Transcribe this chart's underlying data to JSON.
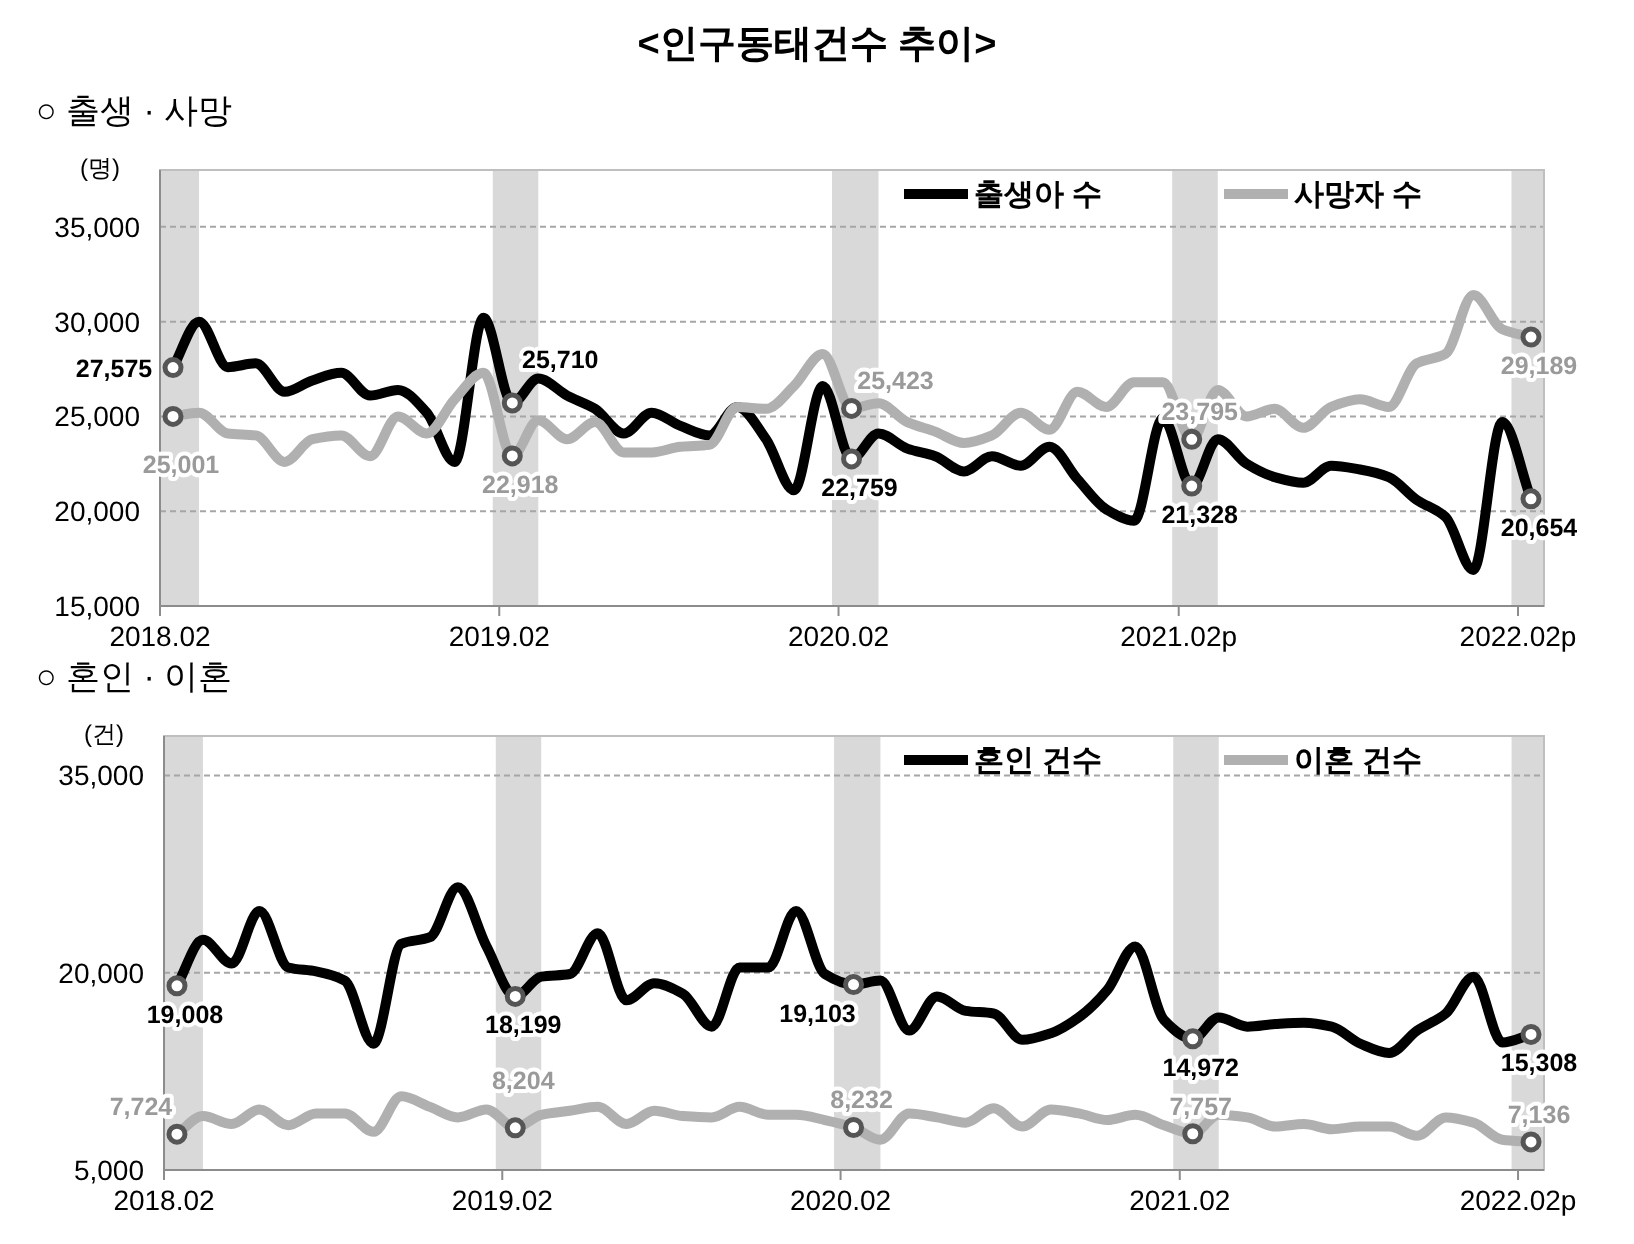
{
  "chart_data": [
    {
      "type": "line",
      "title": "<인구동태건수 추이>",
      "subtitle": "○ 출생 · 사망",
      "ylabel": "(명)",
      "x": [
        "2018-02-15",
        "2018-03-15",
        "2018-04-15",
        "2018-05-15",
        "2018-06-15",
        "2018-07-15",
        "2018-08-15",
        "2018-09-15",
        "2018-10-15",
        "2018-11-15",
        "2018-12-15",
        "2019-01-15",
        "2019-02-15",
        "2019-03-15",
        "2019-04-15",
        "2019-05-15",
        "2019-06-15",
        "2019-07-15",
        "2019-08-15",
        "2019-09-15",
        "2019-10-15",
        "2019-11-15",
        "2019-12-15",
        "2020-01-15",
        "2020-02-15",
        "2020-03-15",
        "2020-04-15",
        "2020-05-15",
        "2020-06-15",
        "2020-07-15",
        "2020-08-15",
        "2020-09-15",
        "2020-10-15",
        "2020-11-15",
        "2020-12-15",
        "2021-01-15",
        "2021-02-15",
        "2021-03-15",
        "2021-04-15",
        "2021-05-15",
        "2021-06-15",
        "2021-07-15",
        "2021-08-15",
        "2021-09-15",
        "2021-10-15",
        "2021-11-15",
        "2021-12-15",
        "2022-01-15",
        "2022-02-15"
      ],
      "series": [
        {
          "name": "출생아 수",
          "color": "#000000",
          "values": [
            27575,
            30000,
            27600,
            27800,
            26300,
            26900,
            27300,
            26100,
            26400,
            25200,
            22600,
            30200,
            25710,
            27000,
            26100,
            25400,
            24100,
            25200,
            24500,
            24000,
            25500,
            23800,
            21100,
            26600,
            22759,
            24100,
            23300,
            22900,
            22100,
            22900,
            22400,
            23400,
            21700,
            20100,
            19500,
            24900,
            21328,
            23800,
            22500,
            21800,
            21500,
            22400,
            22200,
            21800,
            20600,
            19700,
            16900,
            24700,
            20654
          ],
          "value_labels": [
            "27,575",
            null,
            null,
            null,
            null,
            null,
            null,
            null,
            null,
            null,
            null,
            null,
            "25,710",
            null,
            null,
            null,
            null,
            null,
            null,
            null,
            null,
            null,
            null,
            null,
            "22,759",
            null,
            null,
            null,
            null,
            null,
            null,
            null,
            null,
            null,
            null,
            null,
            "21,328",
            null,
            null,
            null,
            null,
            null,
            null,
            null,
            null,
            null,
            null,
            null,
            "20,654"
          ]
        },
        {
          "name": "사망자 수",
          "color": "#b0b0b0",
          "values": [
            25001,
            25200,
            24100,
            24000,
            22600,
            23800,
            24000,
            22900,
            25000,
            24100,
            25900,
            27300,
            22918,
            24800,
            23800,
            24700,
            23100,
            23100,
            23400,
            23500,
            25500,
            25400,
            26600,
            28300,
            25423,
            25700,
            24700,
            24200,
            23600,
            24000,
            25200,
            24300,
            26300,
            25500,
            26800,
            26800,
            23795,
            26400,
            25000,
            25400,
            24400,
            25500,
            25900,
            25500,
            27800,
            28300,
            31400,
            29600,
            29189
          ],
          "value_labels": [
            "25,001",
            null,
            null,
            null,
            null,
            null,
            null,
            null,
            null,
            null,
            null,
            null,
            "22,918",
            null,
            null,
            null,
            null,
            null,
            null,
            null,
            null,
            null,
            null,
            null,
            "25,423",
            null,
            null,
            null,
            null,
            null,
            null,
            null,
            null,
            null,
            null,
            null,
            "23,795",
            null,
            null,
            null,
            null,
            null,
            null,
            null,
            null,
            null,
            null,
            null,
            "29,189"
          ]
        }
      ],
      "xlim": [
        "2018-02-01",
        "2022-03-01"
      ],
      "xticks": [
        {
          "value": "2018-02-01",
          "label": "2018.02"
        },
        {
          "value": "2019-02-01",
          "label": "2019.02"
        },
        {
          "value": "2020-02-01",
          "label": "2020.02"
        },
        {
          "value": "2021-02-01",
          "label": "2021.02p"
        },
        {
          "value": "2022-02-01",
          "label": "2022.02p"
        }
      ],
      "ylim": [
        15000,
        38000
      ],
      "yticks": [
        {
          "value": 15000,
          "label": "15,000"
        },
        {
          "value": 20000,
          "label": "20,000"
        },
        {
          "value": 25000,
          "label": "25,000"
        },
        {
          "value": 30000,
          "label": "30,000"
        },
        {
          "value": 35000,
          "label": "35,000"
        }
      ],
      "bands": [
        {
          "axis": "x",
          "from": "2018-02-01",
          "to": "2018-03-15",
          "label": null,
          "color": "#d9d9d9"
        },
        {
          "axis": "x",
          "from": "2019-01-25",
          "to": "2019-03-15",
          "label": null,
          "color": "#d9d9d9"
        },
        {
          "axis": "x",
          "from": "2020-01-25",
          "to": "2020-03-15",
          "label": null,
          "color": "#d9d9d9"
        },
        {
          "axis": "x",
          "from": "2021-01-25",
          "to": "2021-03-15",
          "label": null,
          "color": "#d9d9d9"
        },
        {
          "axis": "x",
          "from": "2022-01-25",
          "to": "2022-03-01",
          "label": null,
          "color": "#d9d9d9"
        }
      ],
      "grid": "y",
      "legend": "top right",
      "line_style": "solid"
    },
    {
      "type": "line",
      "subtitle": "○ 혼인 · 이혼",
      "ylabel": "(건)",
      "x": [
        "2018-02-15",
        "2018-03-15",
        "2018-04-15",
        "2018-05-15",
        "2018-06-15",
        "2018-07-15",
        "2018-08-15",
        "2018-09-15",
        "2018-10-15",
        "2018-11-15",
        "2018-12-15",
        "2019-01-15",
        "2019-02-15",
        "2019-03-15",
        "2019-04-15",
        "2019-05-15",
        "2019-06-15",
        "2019-07-15",
        "2019-08-15",
        "2019-09-15",
        "2019-10-15",
        "2019-11-15",
        "2019-12-15",
        "2020-01-15",
        "2020-02-15",
        "2020-03-15",
        "2020-04-15",
        "2020-05-15",
        "2020-06-15",
        "2020-07-15",
        "2020-08-15",
        "2020-09-15",
        "2020-10-15",
        "2020-11-15",
        "2020-12-15",
        "2021-01-15",
        "2021-02-15",
        "2021-03-15",
        "2021-04-15",
        "2021-05-15",
        "2021-06-15",
        "2021-07-15",
        "2021-08-15",
        "2021-09-15",
        "2021-10-15",
        "2021-11-15",
        "2021-12-15",
        "2022-01-15",
        "2022-02-15"
      ],
      "series": [
        {
          "name": "혼인 건수",
          "color": "#000000",
          "values": [
            19008,
            22500,
            20700,
            24700,
            20400,
            20100,
            19400,
            14600,
            22200,
            22700,
            26500,
            22000,
            18199,
            19700,
            19900,
            23000,
            17900,
            19200,
            18400,
            15900,
            20400,
            20400,
            24700,
            19900,
            19103,
            19400,
            15600,
            18200,
            17100,
            16900,
            14900,
            15400,
            16600,
            18700,
            22000,
            16400,
            14972,
            16600,
            15900,
            16100,
            16200,
            15900,
            14600,
            13900,
            15600,
            16900,
            19700,
            14700,
            15308
          ],
          "value_labels": [
            "19,008",
            null,
            null,
            null,
            null,
            null,
            null,
            null,
            null,
            null,
            null,
            null,
            "18,199",
            null,
            null,
            null,
            null,
            null,
            null,
            null,
            null,
            null,
            null,
            null,
            "19,103",
            null,
            null,
            null,
            null,
            null,
            null,
            null,
            null,
            null,
            null,
            null,
            "14,972",
            null,
            null,
            null,
            null,
            null,
            null,
            null,
            null,
            null,
            null,
            null,
            "15,308"
          ]
        },
        {
          "name": "이혼 건수",
          "color": "#b0b0b0",
          "values": [
            7724,
            9100,
            8500,
            9600,
            8400,
            9300,
            9300,
            7900,
            10600,
            9800,
            9000,
            9600,
            8204,
            9200,
            9500,
            9800,
            8500,
            9500,
            9100,
            9000,
            9800,
            9200,
            9200,
            8800,
            8232,
            7300,
            9300,
            9000,
            8600,
            9700,
            8300,
            9600,
            9300,
            8800,
            9200,
            8400,
            7757,
            9200,
            9000,
            8300,
            8500,
            8100,
            8300,
            8300,
            7600,
            9000,
            8600,
            7300,
            7136
          ],
          "value_labels": [
            "7,724",
            null,
            null,
            null,
            null,
            null,
            null,
            null,
            null,
            null,
            null,
            null,
            "8,204",
            null,
            null,
            null,
            null,
            null,
            null,
            null,
            null,
            null,
            null,
            null,
            "8,232",
            null,
            null,
            null,
            null,
            null,
            null,
            null,
            null,
            null,
            null,
            null,
            "7,757",
            null,
            null,
            null,
            null,
            null,
            null,
            null,
            null,
            null,
            null,
            null,
            "7,136"
          ]
        }
      ],
      "xlim": [
        "2018-02-01",
        "2022-03-01"
      ],
      "xticks": [
        {
          "value": "2018-02-01",
          "label": "2018.02"
        },
        {
          "value": "2019-02-01",
          "label": "2019.02"
        },
        {
          "value": "2020-02-01",
          "label": "2020.02"
        },
        {
          "value": "2021-02-01",
          "label": "2021.02"
        },
        {
          "value": "2022-02-01",
          "label": "2022.02p"
        }
      ],
      "ylim": [
        5000,
        38000
      ],
      "yticks": [
        {
          "value": 5000,
          "label": "5,000"
        },
        {
          "value": 20000,
          "label": "20,000"
        },
        {
          "value": 35000,
          "label": "35,000"
        }
      ],
      "bands": [
        {
          "axis": "x",
          "from": "2018-02-01",
          "to": "2018-03-15",
          "label": null,
          "color": "#d9d9d9"
        },
        {
          "axis": "x",
          "from": "2019-01-25",
          "to": "2019-03-15",
          "label": null,
          "color": "#d9d9d9"
        },
        {
          "axis": "x",
          "from": "2020-01-25",
          "to": "2020-03-15",
          "label": null,
          "color": "#d9d9d9"
        },
        {
          "axis": "x",
          "from": "2021-01-25",
          "to": "2021-03-15",
          "label": null,
          "color": "#d9d9d9"
        },
        {
          "axis": "x",
          "from": "2022-01-25",
          "to": "2022-03-01",
          "label": null,
          "color": "#d9d9d9"
        }
      ],
      "grid": "y",
      "legend": "top right",
      "line_style": "solid"
    }
  ]
}
